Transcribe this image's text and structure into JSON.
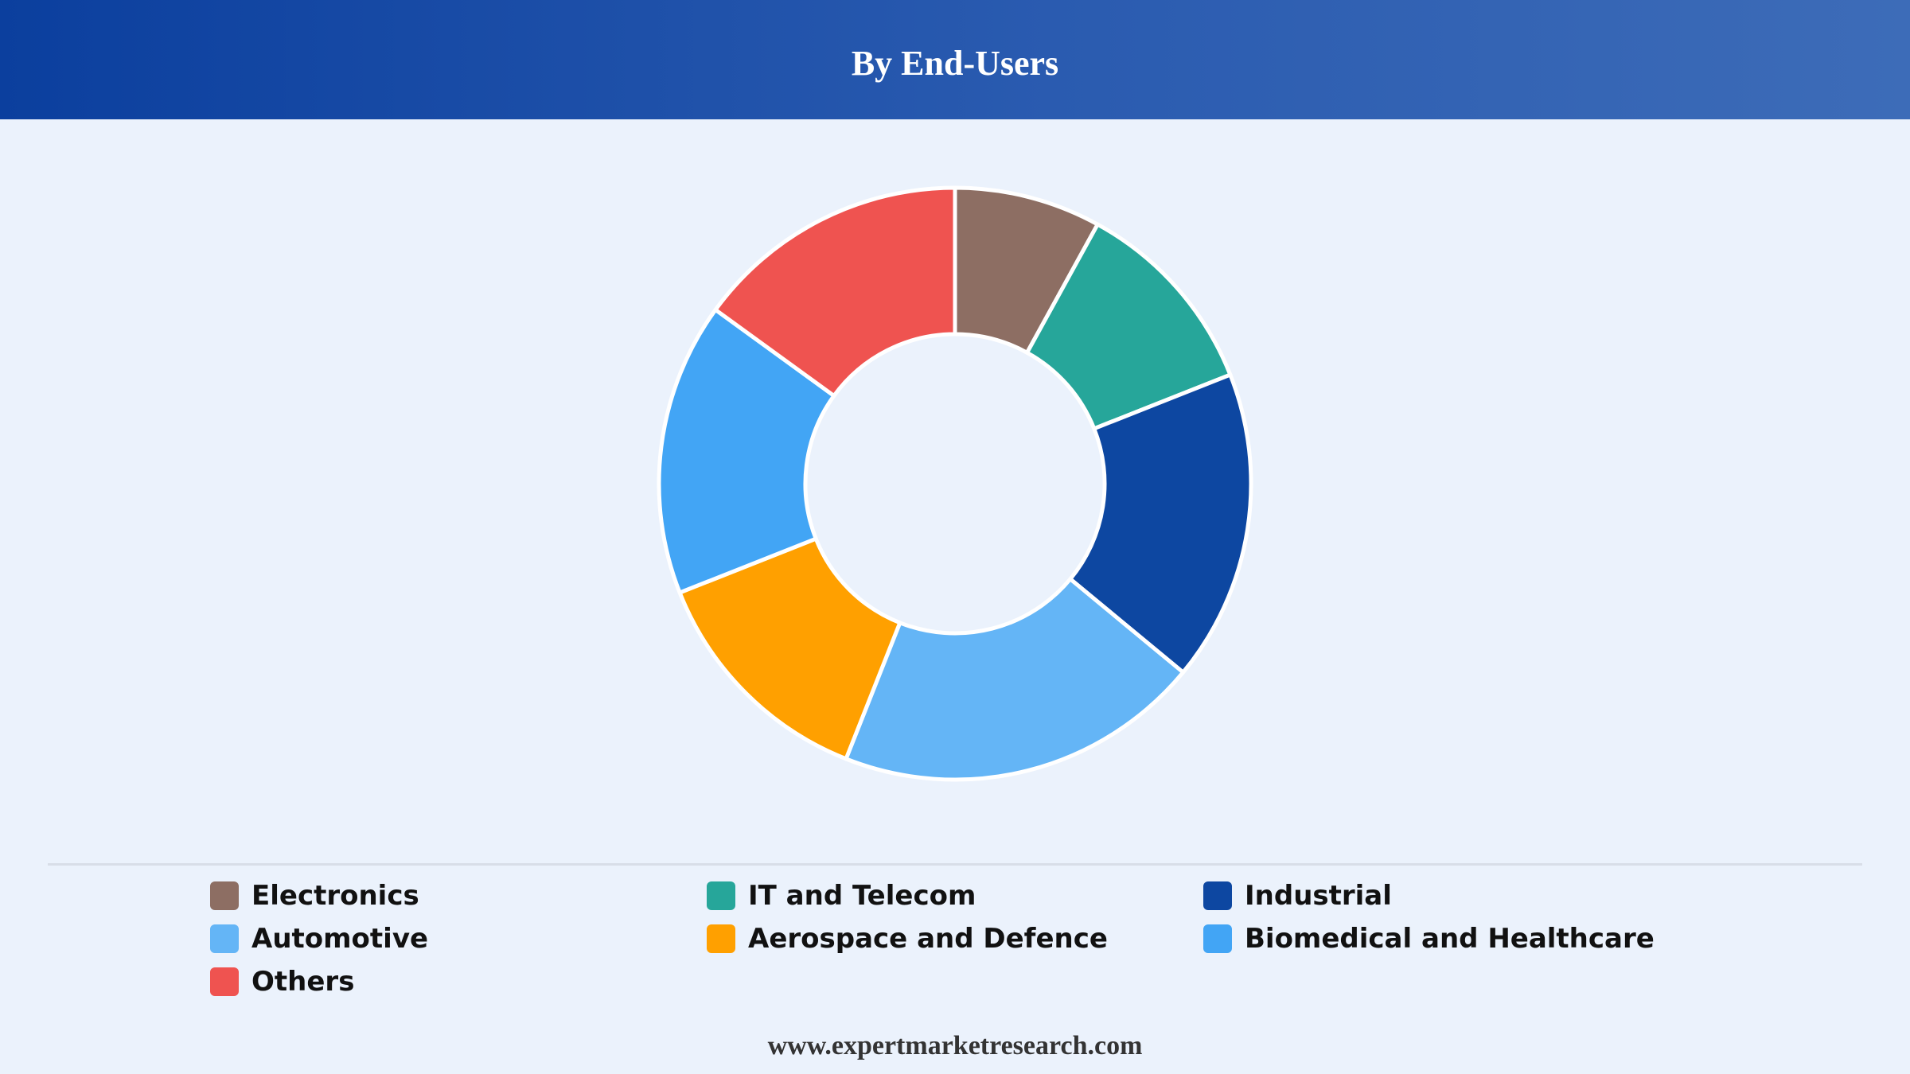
{
  "header": {
    "title": "By End-Users"
  },
  "chart_data": {
    "type": "pie",
    "variant": "donut",
    "title": "By End-Users",
    "start_angle_deg": 0,
    "direction": "clockwise",
    "categories": [
      "Electronics",
      "IT and Telecom",
      "Industrial",
      "Automotive",
      "Aerospace and Defence",
      "Biomedical and Healthcare",
      "Others"
    ],
    "series": [
      {
        "values": [
          8,
          11,
          17,
          20,
          13,
          16,
          15
        ]
      }
    ],
    "slice_order": [
      "Electronics",
      "IT and Telecom",
      "Industrial",
      "Automotive",
      "Aerospace and Defence",
      "Biomedical and Healthcare",
      "Others"
    ],
    "colors": [
      "#8d6e63",
      "#26a69a",
      "#0d47a1",
      "#64b5f6",
      "#ffa000",
      "#42a5f5",
      "#ef5350"
    ],
    "legend": {
      "position": "bottom"
    }
  },
  "legend": {
    "items": [
      {
        "label": "Electronics",
        "color": "#8d6e63"
      },
      {
        "label": "IT and Telecom",
        "color": "#26a69a"
      },
      {
        "label": "Industrial",
        "color": "#0d47a1"
      },
      {
        "label": "Automotive",
        "color": "#64b5f6"
      },
      {
        "label": "Aerospace and Defence",
        "color": "#ffa000"
      },
      {
        "label": "Biomedical and Healthcare",
        "color": "#42a5f5"
      },
      {
        "label": "Others",
        "color": "#ef5350"
      }
    ]
  },
  "footer": {
    "source": "www.expertmarketresearch.com"
  }
}
